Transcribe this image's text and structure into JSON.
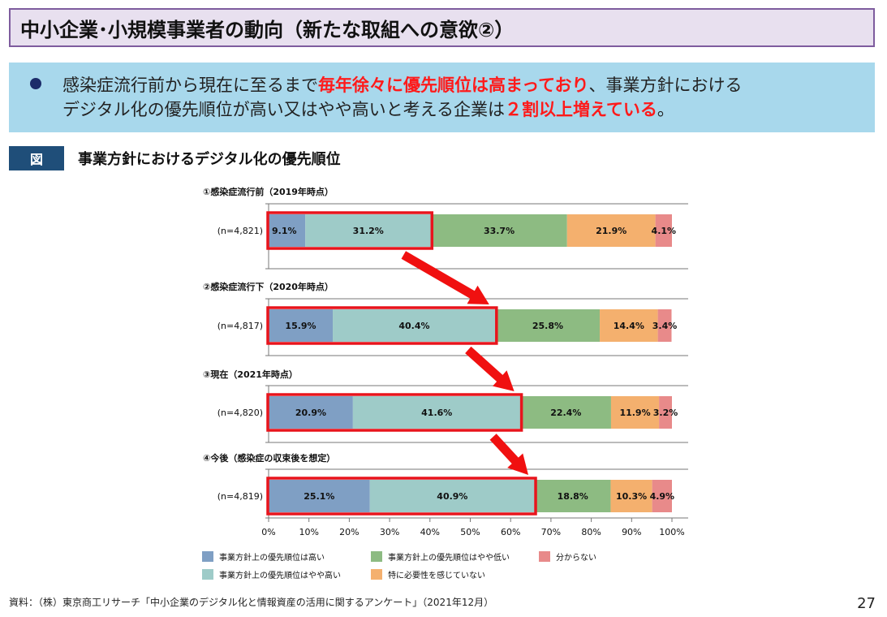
{
  "header": {
    "title": "中小企業･小規模事業者の動向（新たな取組への意欲②）"
  },
  "summary": {
    "part1": "感染症流行前から現在に至るまで",
    "highlight1": "毎年徐々に優先順位は高まっており",
    "part2": "、事業方針における",
    "part3": "デジタル化の優先順位が高い又はやや高いと考える企業は",
    "highlight2": "２割以上増えている",
    "part4": "。"
  },
  "figure": {
    "label": "図",
    "title": "事業方針におけるデジタル化の優先順位"
  },
  "chart_data": {
    "type": "bar",
    "orientation": "horizontal-stacked-100",
    "groups": [
      {
        "title": "①感染症流行前（2019年時点）",
        "n_label": "(n=4,821)",
        "values": [
          9.1,
          31.2,
          33.7,
          21.9,
          4.1
        ],
        "labels": [
          "9.1%",
          "31.2%",
          "33.7%",
          "21.9%",
          "4.1%"
        ]
      },
      {
        "title": "②感染症流行下（2020年時点）",
        "n_label": "(n=4,817)",
        "values": [
          15.9,
          40.4,
          25.8,
          14.4,
          3.4
        ],
        "labels": [
          "15.9%",
          "40.4%",
          "25.8%",
          "14.4%",
          "3.4%"
        ]
      },
      {
        "title": "③現在（2021年時点）",
        "n_label": "(n=4,820)",
        "values": [
          20.9,
          41.6,
          22.4,
          11.9,
          3.2
        ],
        "labels": [
          "20.9%",
          "41.6%",
          "22.4%",
          "11.9%",
          "3.2%"
        ]
      },
      {
        "title": "④今後（感染症の収束後を想定）",
        "n_label": "(n=4,819)",
        "values": [
          25.1,
          40.9,
          18.8,
          10.3,
          4.9
        ],
        "labels": [
          "25.1%",
          "40.9%",
          "18.8%",
          "10.3%",
          "4.9%"
        ]
      }
    ],
    "series": [
      {
        "name": "事業方針上の優先順位は高い",
        "color": "#7f9fc4"
      },
      {
        "name": "事業方針上の優先順位はやや高い",
        "color": "#9ecbc8"
      },
      {
        "name": "事業方針上の優先順位はやや低い",
        "color": "#8dbb82"
      },
      {
        "name": "特に必要性を感じていない",
        "color": "#f4b06e"
      },
      {
        "name": "分からない",
        "color": "#e88a8a"
      }
    ],
    "x_ticks": [
      "0%",
      "10%",
      "20%",
      "30%",
      "40%",
      "50%",
      "60%",
      "70%",
      "80%",
      "90%",
      "100%"
    ],
    "xlim": [
      0,
      100
    ],
    "highlight_color": "#e8141c",
    "arrow_color": "#f01010"
  },
  "footer": {
    "source": "資料：（株）東京商工リサーチ「中小企業のデジタル化と情報資産の活用に関するアンケート」（2021年12月）",
    "page": "27"
  }
}
